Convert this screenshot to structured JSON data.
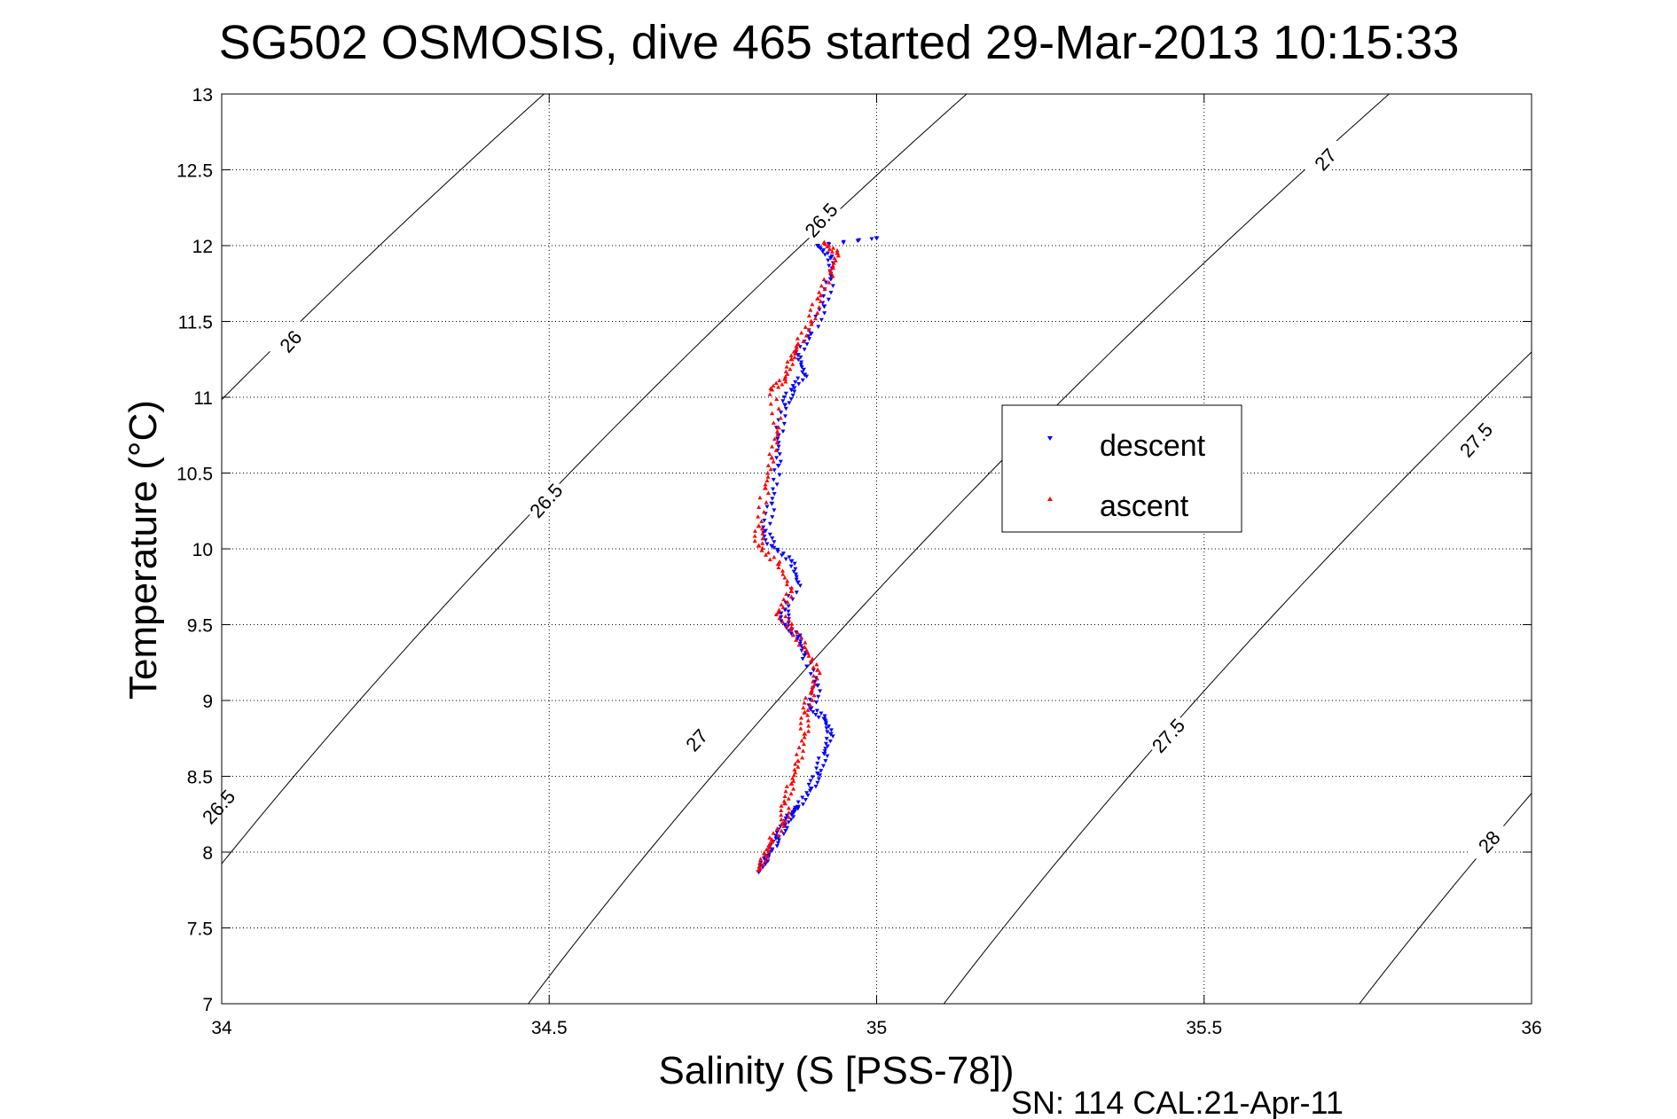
{
  "chart_data": {
    "type": "scatter",
    "title": "SG502 OSMOSIS, dive 465 started 29-Mar-2013 10:15:33",
    "xlabel": "Salinity (S [PSS-78])",
    "ylabel": "Temperature (°C)",
    "xlim": [
      34,
      36
    ],
    "ylim": [
      7,
      13
    ],
    "x_ticks": [
      "34",
      "34.5",
      "35",
      "35.5",
      "36"
    ],
    "y_ticks": [
      "7",
      "7.5",
      "8",
      "8.5",
      "9",
      "9.5",
      "10",
      "10.5",
      "11",
      "11.5",
      "12",
      "12.5",
      "13"
    ],
    "grid": true,
    "legend_position": "center-right",
    "footer": "SN: 114  CAL:21-Apr-11",
    "density_contours": [
      {
        "sigma": "26",
        "labels": [
          {
            "text": "26",
            "s": 34.11,
            "t": 11.35
          }
        ]
      },
      {
        "sigma": "26.5",
        "labels": [
          {
            "text": "26.5",
            "s": 34.0,
            "t": 8.28
          },
          {
            "text": "26.5",
            "s": 34.5,
            "t": 10.3
          },
          {
            "text": "26.5",
            "s": 34.92,
            "t": 12.15
          }
        ]
      },
      {
        "sigma": "27",
        "labels": [
          {
            "text": "27",
            "s": 34.73,
            "t": 8.72
          },
          {
            "text": "27",
            "s": 35.69,
            "t": 12.55
          }
        ]
      },
      {
        "sigma": "27.5",
        "labels": [
          {
            "text": "27.5",
            "s": 35.45,
            "t": 8.75
          },
          {
            "text": "27.5",
            "s": 35.92,
            "t": 10.7
          }
        ]
      },
      {
        "sigma": "28",
        "labels": [
          {
            "text": "28",
            "s": 35.94,
            "t": 8.05
          }
        ]
      }
    ],
    "series": [
      {
        "name": "descent",
        "color": "#0000ff",
        "marker": "triangle-down",
        "points": [
          [
            34.82,
            7.87
          ],
          [
            34.83,
            7.95
          ],
          [
            34.84,
            8.02
          ],
          [
            34.85,
            8.1
          ],
          [
            34.86,
            8.18
          ],
          [
            34.87,
            8.25
          ],
          [
            34.88,
            8.3
          ],
          [
            34.9,
            8.42
          ],
          [
            34.91,
            8.52
          ],
          [
            34.92,
            8.65
          ],
          [
            34.93,
            8.78
          ],
          [
            34.92,
            8.88
          ],
          [
            34.9,
            8.95
          ],
          [
            34.91,
            9.1
          ],
          [
            34.89,
            9.3
          ],
          [
            34.88,
            9.42
          ],
          [
            34.86,
            9.5
          ],
          [
            34.86,
            9.6
          ],
          [
            34.88,
            9.78
          ],
          [
            34.87,
            9.92
          ],
          [
            34.84,
            10.02
          ],
          [
            34.83,
            10.12
          ],
          [
            34.84,
            10.3
          ],
          [
            34.85,
            10.55
          ],
          [
            34.85,
            10.75
          ],
          [
            34.86,
            10.95
          ],
          [
            34.87,
            11.05
          ],
          [
            34.89,
            11.15
          ],
          [
            34.88,
            11.28
          ],
          [
            34.9,
            11.42
          ],
          [
            34.92,
            11.6
          ],
          [
            34.93,
            11.78
          ],
          [
            34.93,
            11.92
          ],
          [
            34.91,
            12.0
          ],
          [
            35.0,
            12.05
          ]
        ]
      },
      {
        "name": "ascent",
        "color": "#ff0000",
        "marker": "triangle-up",
        "points": [
          [
            34.82,
            7.88
          ],
          [
            34.83,
            7.98
          ],
          [
            34.84,
            8.08
          ],
          [
            34.86,
            8.2
          ],
          [
            34.86,
            8.32
          ],
          [
            34.87,
            8.45
          ],
          [
            34.88,
            8.6
          ],
          [
            34.89,
            8.78
          ],
          [
            34.89,
            8.92
          ],
          [
            34.9,
            9.05
          ],
          [
            34.91,
            9.2
          ],
          [
            34.89,
            9.35
          ],
          [
            34.87,
            9.48
          ],
          [
            34.85,
            9.58
          ],
          [
            34.87,
            9.72
          ],
          [
            34.85,
            9.9
          ],
          [
            34.82,
            10.02
          ],
          [
            34.82,
            10.15
          ],
          [
            34.83,
            10.4
          ],
          [
            34.84,
            10.6
          ],
          [
            34.85,
            10.8
          ],
          [
            34.84,
            11.05
          ],
          [
            34.86,
            11.12
          ],
          [
            34.87,
            11.25
          ],
          [
            34.88,
            11.35
          ],
          [
            34.9,
            11.5
          ],
          [
            34.91,
            11.65
          ],
          [
            34.93,
            11.82
          ],
          [
            34.94,
            11.95
          ],
          [
            34.92,
            12.02
          ]
        ]
      }
    ]
  }
}
